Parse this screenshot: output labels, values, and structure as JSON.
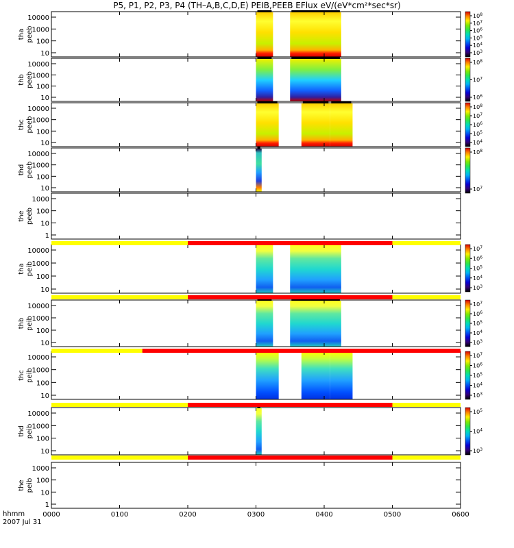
{
  "title": "P5, P1, P2, P3, P4 (TH–A,B,C,D,E) PEIB,PEEB EFlux eV/(eV*cm²*sec*sr)",
  "time_unit": "hhmm",
  "date": "2007 Jul 31",
  "chart_data": {
    "type": "heatmap",
    "x_range": [
      "0000",
      "0600"
    ],
    "x_ticks": [
      "0000",
      "0100",
      "0200",
      "0300",
      "0400",
      "0500",
      "0600"
    ],
    "panels": [
      {
        "probe": "tha",
        "instrument": "peeb",
        "ylog": true,
        "y_ticks": [
          "10",
          "100",
          "1000",
          "10000"
        ],
        "colorbar_ticks": [
          "10^3",
          "10^4",
          "10^5",
          "10^6",
          "10^7",
          "10^8"
        ],
        "data_intervals": [
          [
            "0300",
            "0315"
          ],
          [
            "0330",
            "0415"
          ]
        ]
      },
      {
        "probe": "thb",
        "instrument": "peeb",
        "ylog": true,
        "y_ticks": [
          "10",
          "100",
          "1000",
          "10000"
        ],
        "colorbar_ticks": [
          "10^6",
          "10^7",
          "10^8"
        ],
        "data_intervals": [
          [
            "0300",
            "0315"
          ],
          [
            "0330",
            "0415"
          ]
        ]
      },
      {
        "probe": "thc",
        "instrument": "peeb",
        "ylog": true,
        "y_ticks": [
          "10",
          "100",
          "1000",
          "10000"
        ],
        "colorbar_ticks": [
          "10^4",
          "10^5",
          "10^6",
          "10^7",
          "10^8"
        ],
        "data_intervals": [
          [
            "0300",
            "0320"
          ],
          [
            "0340",
            "0405"
          ],
          [
            "0405",
            "0425"
          ]
        ]
      },
      {
        "probe": "thd",
        "instrument": "peeb",
        "ylog": true,
        "y_ticks": [
          "10",
          "100",
          "1000",
          "10000"
        ],
        "colorbar_ticks": [
          "10^7",
          "10^8"
        ],
        "data_intervals": [
          [
            "0300",
            "0305"
          ]
        ]
      },
      {
        "probe": "the",
        "instrument": "peeb",
        "ylog": true,
        "y_ticks": [
          "1",
          "10",
          "100",
          "1000"
        ],
        "colorbar_ticks": [],
        "data_intervals": []
      },
      {
        "probe": "tha",
        "instrument": "peib",
        "ylog": true,
        "y_ticks": [
          "10",
          "100",
          "1000",
          "10000"
        ],
        "colorbar_ticks": [
          "10^3",
          "10^4",
          "10^5",
          "10^6",
          "10^7"
        ],
        "data_intervals": [
          [
            "0300",
            "0315"
          ],
          [
            "0330",
            "0415"
          ]
        ]
      },
      {
        "probe": "thb",
        "instrument": "peib",
        "ylog": true,
        "y_ticks": [
          "10",
          "100",
          "1000",
          "10000"
        ],
        "colorbar_ticks": [
          "10^3",
          "10^4",
          "10^5",
          "10^6",
          "10^7"
        ],
        "data_intervals": [
          [
            "0300",
            "0315"
          ],
          [
            "0330",
            "0415"
          ]
        ]
      },
      {
        "probe": "thc",
        "instrument": "peib",
        "ylog": true,
        "y_ticks": [
          "10",
          "100",
          "1000",
          "10000"
        ],
        "colorbar_ticks": [
          "10^3",
          "10^4",
          "10^5",
          "10^6",
          "10^7"
        ],
        "data_intervals": [
          [
            "0300",
            "0320"
          ],
          [
            "0340",
            "0405"
          ],
          [
            "0405",
            "0425"
          ]
        ]
      },
      {
        "probe": "thd",
        "instrument": "peib",
        "ylog": true,
        "y_ticks": [
          "10",
          "100",
          "1000",
          "10000"
        ],
        "colorbar_ticks": [
          "10^3",
          "10^4",
          "10^5"
        ],
        "data_intervals": [
          [
            "0300",
            "0305"
          ]
        ]
      },
      {
        "probe": "the",
        "instrument": "peib",
        "ylog": true,
        "y_ticks": [
          "1",
          "10",
          "100",
          "1000"
        ],
        "colorbar_ticks": [],
        "data_intervals": []
      }
    ],
    "mode_bars": [
      {
        "segments": [
          [
            "0000",
            "0200",
            "#ffff00"
          ],
          [
            "0200",
            "0500",
            "#ff0000"
          ],
          [
            "0500",
            "0600",
            "#ffff00"
          ]
        ]
      },
      {
        "segments": [
          [
            "0000",
            "0200",
            "#ffff00"
          ],
          [
            "0200",
            "0500",
            "#ff0000"
          ],
          [
            "0500",
            "0600",
            "#ffff00"
          ]
        ]
      },
      {
        "segments": [
          [
            "0000",
            "0120",
            "#ffff00"
          ],
          [
            "0120",
            "0600",
            "#ff0000"
          ]
        ]
      },
      {
        "segments": [
          [
            "0000",
            "0200",
            "#ffff00"
          ],
          [
            "0200",
            "0500",
            "#ff0000"
          ],
          [
            "0500",
            "0600",
            "#ffff00"
          ]
        ]
      },
      {
        "segments": [
          [
            "0000",
            "0200",
            "#ffff00"
          ],
          [
            "0200",
            "0500",
            "#ff0000"
          ],
          [
            "0500",
            "0600",
            "#ffff00"
          ]
        ]
      }
    ]
  }
}
